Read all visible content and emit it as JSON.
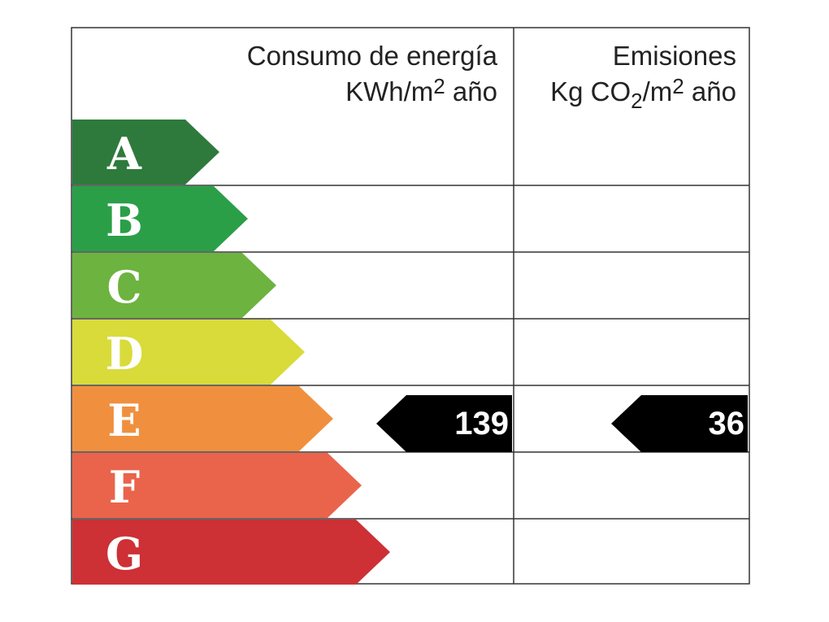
{
  "header": {
    "consumption": {
      "line1": "Consumo de energía",
      "line2": [
        {
          "text": "KWh/m"
        },
        {
          "text": "2",
          "shift": "super"
        },
        {
          "text": " año"
        }
      ]
    },
    "emissions": {
      "line1": "Emisiones",
      "line2": [
        {
          "text": "Kg CO"
        },
        {
          "text": "2",
          "shift": "sub"
        },
        {
          "text": "/m"
        },
        {
          "text": "2",
          "shift": "super"
        },
        {
          "text": " año"
        }
      ]
    }
  },
  "ratings": [
    {
      "letter": "A",
      "color": "#2e7a3c"
    },
    {
      "letter": "B",
      "color": "#2a9f48"
    },
    {
      "letter": "C",
      "color": "#6cb340"
    },
    {
      "letter": "D",
      "color": "#d8db3a"
    },
    {
      "letter": "E",
      "color": "#f0903f"
    },
    {
      "letter": "F",
      "color": "#e9644b"
    },
    {
      "letter": "G",
      "color": "#cd3035"
    }
  ],
  "consumption": {
    "rating": "E",
    "value": 139
  },
  "emissions": {
    "rating": "E",
    "value": 36
  }
}
